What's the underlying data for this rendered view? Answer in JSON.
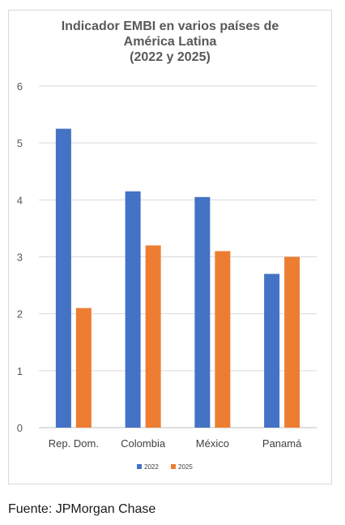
{
  "chart_data": {
    "type": "bar",
    "title_lines": [
      "Indicador EMBI en varios países de",
      "América Latina",
      "(2022 y 2025)"
    ],
    "categories": [
      "Rep. Dom.",
      "Colombia",
      "México",
      "Panamá"
    ],
    "series": [
      {
        "name": "2022",
        "color": "#4472c4",
        "values": [
          5.25,
          4.15,
          4.05,
          2.7
        ]
      },
      {
        "name": "2025",
        "color": "#ed7d31",
        "values": [
          2.1,
          3.2,
          3.1,
          3.0
        ]
      }
    ],
    "ylim": [
      0,
      6
    ],
    "yticks": [
      "0",
      "1",
      "2",
      "3",
      "4",
      "5",
      "6"
    ],
    "grid": true,
    "legend_position": "bottom"
  },
  "source": "Fuente: JPMorgan Chase"
}
